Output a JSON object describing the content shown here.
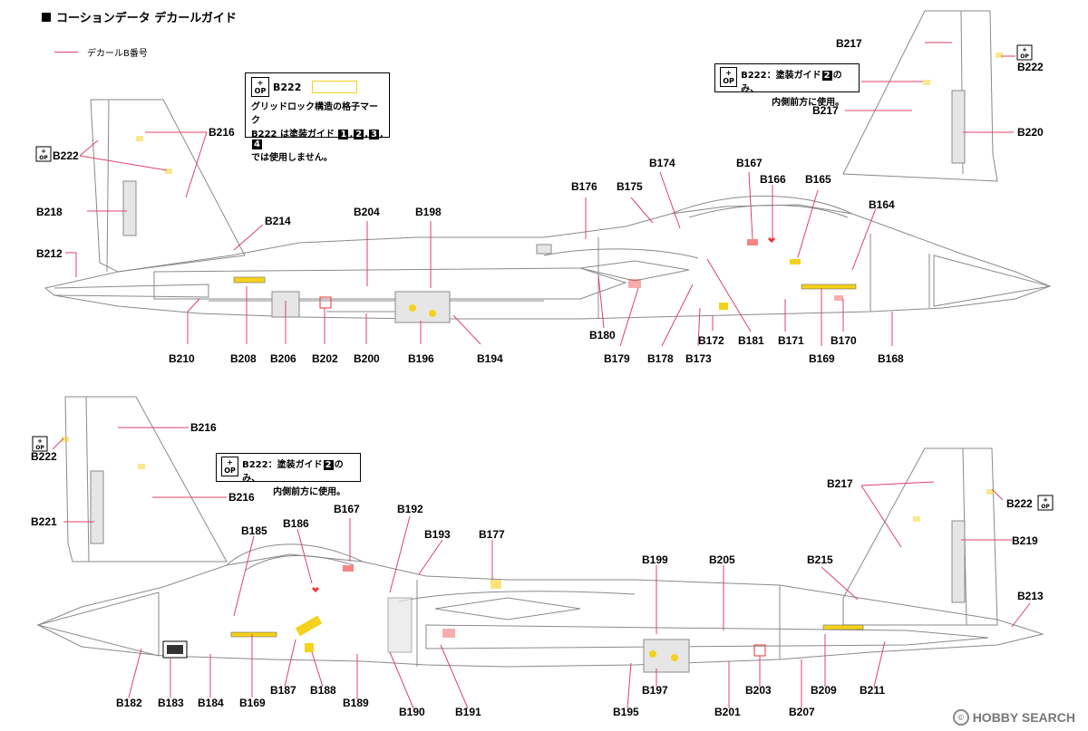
{
  "title": "コーションデータ デカールガイド",
  "legend_text": "デカールB番号",
  "watermark": "HOBBY SEARCH",
  "watermark_mark": "©",
  "op_icon_text": [
    "+",
    "OP"
  ],
  "colors": {
    "leader": "#e0406a",
    "outline": "#8a8a8a",
    "panel": "#e6e6e6",
    "yellow": "#f4d21c",
    "red": "#e33"
  },
  "note_top_left": {
    "code": "B222",
    "line1": "グリッドロック構造の格子マーク",
    "line2_pre": "B222 は塗装ガイド",
    "nums": [
      "1",
      "2",
      "3",
      "4"
    ],
    "line3": "では使用しません。"
  },
  "note_top_right": {
    "code": "B222",
    "text_pre": "：塗装ガイド",
    "num": "2",
    "text_post": "のみ、",
    "line2": "内側前方に使用。"
  },
  "note_bottom": {
    "code": "B222",
    "text_pre": "：塗装ガイド",
    "num": "2",
    "text_post": "のみ、",
    "line2": "内側前方に使用。"
  },
  "top_labels": [
    "B216",
    "B222",
    "B218",
    "B212",
    "B214",
    "B210",
    "B208",
    "B206",
    "B202",
    "B200",
    "B196",
    "B194",
    "B204",
    "B198",
    "B176",
    "B175",
    "B174",
    "B167",
    "B166",
    "B165",
    "B164",
    "B180",
    "B179",
    "B178",
    "B173",
    "B172",
    "B181",
    "B171",
    "B170",
    "B169",
    "B168",
    "B217",
    "B222",
    "B217",
    "B220"
  ],
  "bottom_labels": [
    "B216",
    "B222",
    "B216",
    "B221",
    "B185",
    "B186",
    "B167",
    "B192",
    "B193",
    "B177",
    "B199",
    "B205",
    "B215",
    "B217",
    "B222",
    "B219",
    "B213",
    "B182",
    "B183",
    "B184",
    "B169",
    "B187",
    "B188",
    "B189",
    "B190",
    "B191",
    "B195",
    "B197",
    "B201",
    "B203",
    "B207",
    "B209",
    "B211"
  ]
}
